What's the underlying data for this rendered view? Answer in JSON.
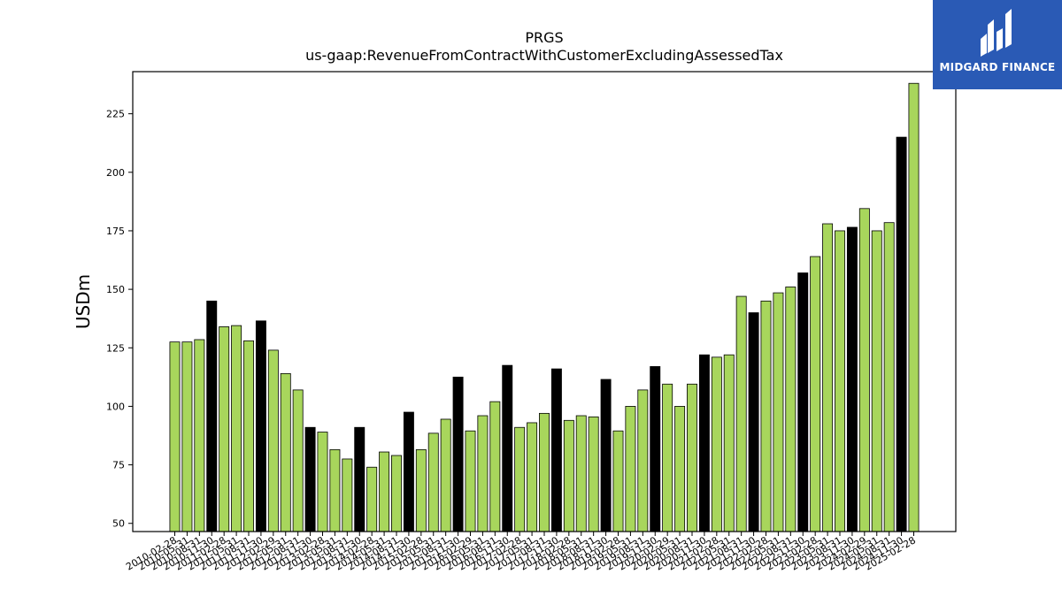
{
  "chart_data": {
    "type": "bar",
    "title": "PRGS",
    "subtitle": "us-gaap:RevenueFromContractWithCustomerExcludingAssessedTax",
    "xlabel": "",
    "ylabel": "USDm",
    "ylim": [
      46.5,
      243
    ],
    "yticks": [
      50,
      75,
      100,
      125,
      150,
      175,
      200,
      225
    ],
    "grid": false,
    "colors": {
      "quarter": "#a8d65c",
      "annual": "#000000",
      "edge": "#000000"
    },
    "categories": [
      "2010-02-28",
      "2010-05-31",
      "2010-08-31",
      "2010-11-30",
      "2011-02-28",
      "2011-05-31",
      "2011-08-31",
      "2011-11-30",
      "2012-02-29",
      "2012-05-31",
      "2012-08-31",
      "2012-11-30",
      "2013-02-28",
      "2013-05-31",
      "2013-08-31",
      "2013-11-30",
      "2014-02-28",
      "2014-05-31",
      "2014-08-31",
      "2014-11-30",
      "2015-02-28",
      "2015-05-31",
      "2015-08-31",
      "2015-11-30",
      "2016-02-29",
      "2016-05-31",
      "2016-08-31",
      "2016-11-30",
      "2017-02-28",
      "2017-05-31",
      "2017-08-31",
      "2017-11-30",
      "2018-02-28",
      "2018-05-31",
      "2018-08-31",
      "2018-11-30",
      "2019-02-28",
      "2019-05-31",
      "2019-08-31",
      "2019-11-30",
      "2020-02-29",
      "2020-05-31",
      "2020-08-31",
      "2020-11-30",
      "2021-02-28",
      "2021-05-31",
      "2021-08-31",
      "2021-11-30",
      "2022-02-28",
      "2022-05-31",
      "2022-08-31",
      "2022-11-30",
      "2023-02-28",
      "2023-05-31",
      "2023-08-31",
      "2023-11-30",
      "2024-02-29",
      "2024-05-31",
      "2024-08-31",
      "2024-11-30",
      "2025-02-28"
    ],
    "values": [
      127.5,
      127.5,
      128.5,
      145,
      134,
      134.5,
      128,
      136.5,
      124,
      114,
      107,
      91,
      89,
      81.5,
      77.5,
      91,
      74,
      80.5,
      79,
      97.5,
      81.5,
      88.5,
      94.5,
      112.5,
      89.5,
      96,
      102,
      117.5,
      91,
      93,
      97,
      116,
      94,
      96,
      95.5,
      111.5,
      89.5,
      100,
      107,
      117,
      109.5,
      100,
      109.5,
      122,
      121,
      122,
      147,
      140,
      145,
      148.5,
      151,
      157,
      164,
      178,
      175,
      176.5,
      184.5,
      175,
      178.5,
      215,
      238
    ],
    "highlight": [
      false,
      false,
      false,
      true,
      false,
      false,
      false,
      true,
      false,
      false,
      false,
      true,
      false,
      false,
      false,
      true,
      false,
      false,
      false,
      true,
      false,
      false,
      false,
      true,
      false,
      false,
      false,
      true,
      false,
      false,
      false,
      true,
      false,
      false,
      false,
      true,
      false,
      false,
      false,
      true,
      false,
      false,
      false,
      true,
      false,
      false,
      false,
      true,
      false,
      false,
      false,
      true,
      false,
      false,
      false,
      true,
      false,
      false,
      false,
      true,
      false
    ]
  },
  "logo": {
    "text": "MIDGARD FINANCE",
    "colors": {
      "background": "#2a5ab5",
      "foreground": "#ffffff"
    }
  }
}
